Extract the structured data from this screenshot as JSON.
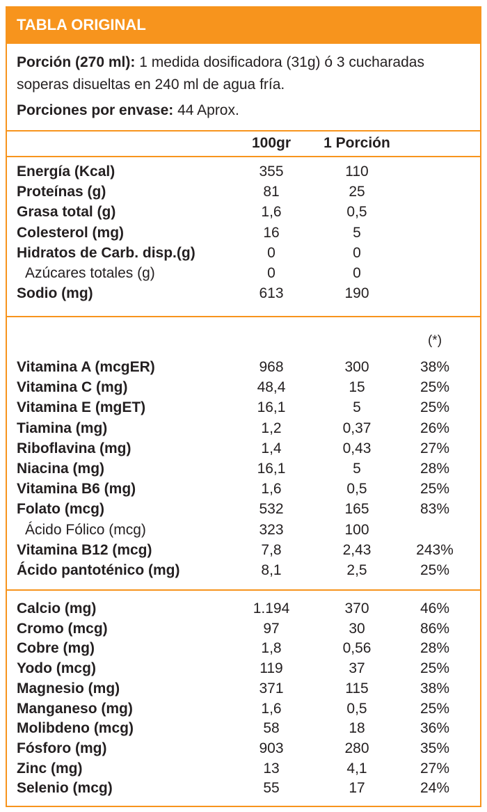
{
  "header": {
    "title": "TABLA ORIGINAL"
  },
  "serving": {
    "label": "Porción (270 ml):",
    "lines": [
      "1 medida dosificadora (31g) ó 3 cucharadas",
      "soperas disueltas en 240 ml de agua fría."
    ],
    "servings_label": "Porciones por envase:",
    "servings_value": "44 Aprox."
  },
  "columns": [
    "100gr",
    "1 Porción"
  ],
  "vdr_note": "(*)",
  "sections": [
    {
      "rows": [
        {
          "label": "Energía (Kcal)",
          "per_100g": "355",
          "per_portion": "110"
        },
        {
          "label": "Proteínas (g)",
          "per_100g": "81",
          "per_portion": "25"
        },
        {
          "label": "Grasa total (g)",
          "per_100g": "1,6",
          "per_portion": "0,5"
        },
        {
          "label": "Colesterol (mg)",
          "per_100g": "16",
          "per_portion": "5"
        },
        {
          "label": "Hidratos de Carb. disp.(g)",
          "per_100g": "0",
          "per_portion": "0"
        },
        {
          "label": "Azúcares totales (g)",
          "per_100g": "0",
          "per_portion": "0",
          "indent": true
        },
        {
          "label": "Sodio (mg)",
          "per_100g": "613",
          "per_portion": "190"
        }
      ]
    },
    {
      "rows": [
        {
          "label": "Vitamina A (mcgER)",
          "per_100g": "968",
          "per_portion": "300",
          "vdr": "38%"
        },
        {
          "label": "Vitamina C (mg)",
          "per_100g": "48,4",
          "per_portion": "15",
          "vdr": "25%"
        },
        {
          "label": "Vitamina E (mgET)",
          "per_100g": "16,1",
          "per_portion": "5",
          "vdr": "25%"
        },
        {
          "label": "Tiamina (mg)",
          "per_100g": "1,2",
          "per_portion": "0,37",
          "vdr": "26%"
        },
        {
          "label": "Riboflavina (mg)",
          "per_100g": "1,4",
          "per_portion": "0,43",
          "vdr": "27%"
        },
        {
          "label": "Niacina (mg)",
          "per_100g": "16,1",
          "per_portion": "5",
          "vdr": "28%"
        },
        {
          "label": "Vitamina B6 (mg)",
          "per_100g": "1,6",
          "per_portion": "0,5",
          "vdr": "25%"
        },
        {
          "label": "Folato (mcg)",
          "per_100g": "532",
          "per_portion": "165",
          "vdr": "83%"
        },
        {
          "label": "Ácido Fólico (mcg)",
          "per_100g": "323",
          "per_portion": "100",
          "indent": true
        },
        {
          "label": "Vitamina B12 (mcg)",
          "per_100g": "7,8",
          "per_portion": "2,43",
          "vdr": "243%"
        },
        {
          "label": "Ácido pantoténico (mg)",
          "per_100g": "8,1",
          "per_portion": "2,5",
          "vdr": "25%"
        }
      ]
    },
    {
      "rows": [
        {
          "label": "Calcio (mg)",
          "per_100g": "1.194",
          "per_portion": "370",
          "vdr": "46%"
        },
        {
          "label": "Cromo (mcg)",
          "per_100g": "97",
          "per_portion": "30",
          "vdr": "86%"
        },
        {
          "label": "Cobre (mg)",
          "per_100g": "1,8",
          "per_portion": "0,56",
          "vdr": "28%"
        },
        {
          "label": "Yodo (mcg)",
          "per_100g": "119",
          "per_portion": "37",
          "vdr": "25%"
        },
        {
          "label": "Magnesio (mg)",
          "per_100g": "371",
          "per_portion": "115",
          "vdr": "38%"
        },
        {
          "label": "Manganeso (mg)",
          "per_100g": "1,6",
          "per_portion": "0,5",
          "vdr": "25%"
        },
        {
          "label": "Molibdeno (mcg)",
          "per_100g": "58",
          "per_portion": "18",
          "vdr": "36%"
        },
        {
          "label": "Fósforo (mg)",
          "per_100g": "903",
          "per_portion": "280",
          "vdr": "35%"
        },
        {
          "label": "Zinc (mg)",
          "per_100g": "13",
          "per_portion": "4,1",
          "vdr": "27%"
        },
        {
          "label": "Selenio (mcg)",
          "per_100g": "55",
          "per_portion": "17",
          "vdr": "24%"
        }
      ]
    }
  ]
}
